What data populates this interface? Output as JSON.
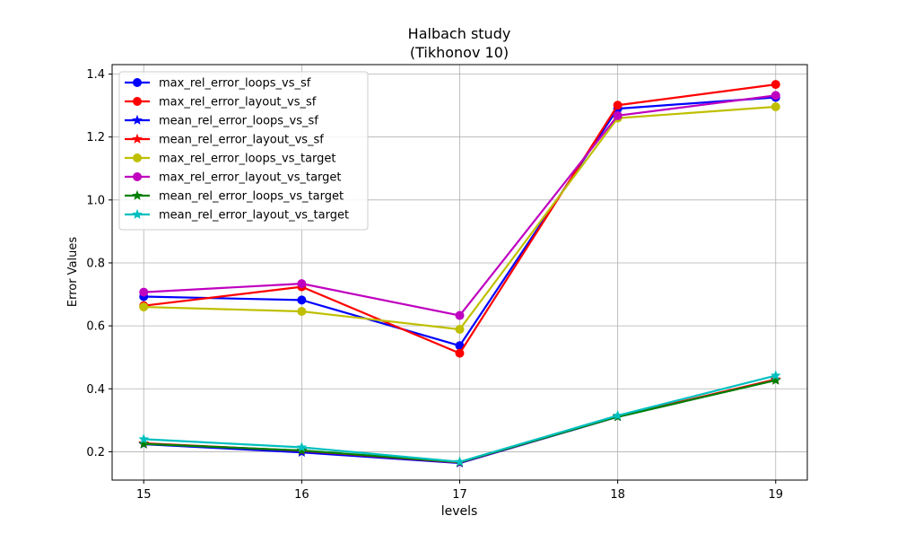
{
  "chart_data": {
    "type": "line",
    "title_line1": "Halbach study",
    "title_line2": "(Tikhonov 10)",
    "xlabel": "levels",
    "ylabel": "Error Values",
    "x": [
      15,
      16,
      17,
      18,
      19
    ],
    "xlim": [
      14.8,
      19.2
    ],
    "ylim": [
      0.11,
      1.43
    ],
    "xticks": [
      "15",
      "16",
      "17",
      "18",
      "19"
    ],
    "yticks": [
      "0.2",
      "0.4",
      "0.6",
      "0.8",
      "1.0",
      "1.2",
      "1.4"
    ],
    "yticks_values": [
      0.2,
      0.4,
      0.6,
      0.8,
      1.0,
      1.2,
      1.4
    ],
    "grid": true,
    "legend_position": "top-left",
    "series": [
      {
        "name": "max_rel_error_loops_vs_sf",
        "color": "#0000ff",
        "marker": "circle",
        "values": [
          0.693,
          0.682,
          0.537,
          1.29,
          1.326
        ]
      },
      {
        "name": "max_rel_error_layout_vs_sf",
        "color": "#ff0000",
        "marker": "circle",
        "values": [
          0.664,
          0.724,
          0.513,
          1.301,
          1.367
        ]
      },
      {
        "name": "mean_rel_error_loops_vs_sf",
        "color": "#0000ff",
        "marker": "star",
        "values": [
          0.224,
          0.198,
          0.164,
          0.311,
          0.428
        ]
      },
      {
        "name": "mean_rel_error_layout_vs_sf",
        "color": "#ff0000",
        "marker": "star",
        "values": [
          0.227,
          0.203,
          0.166,
          0.312,
          0.43
        ]
      },
      {
        "name": "max_rel_error_loops_vs_target",
        "color": "#bfbf00",
        "marker": "circle",
        "values": [
          0.66,
          0.646,
          0.589,
          1.26,
          1.296
        ]
      },
      {
        "name": "max_rel_error_layout_vs_target",
        "color": "#bf00bf",
        "marker": "circle",
        "values": [
          0.707,
          0.734,
          0.633,
          1.268,
          1.332
        ]
      },
      {
        "name": "mean_rel_error_loops_vs_target",
        "color": "#008000",
        "marker": "star",
        "values": [
          0.225,
          0.204,
          0.167,
          0.311,
          0.427
        ]
      },
      {
        "name": "mean_rel_error_layout_vs_target",
        "color": "#00bfbf",
        "marker": "star",
        "values": [
          0.24,
          0.214,
          0.168,
          0.315,
          0.442
        ]
      }
    ]
  }
}
